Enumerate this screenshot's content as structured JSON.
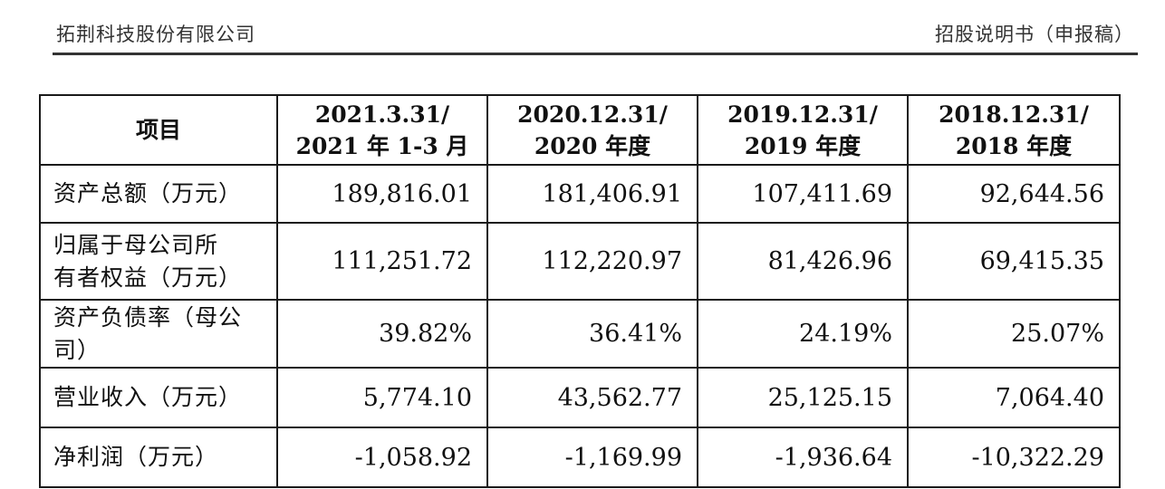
{
  "header": {
    "company": "拓荆科技股份有限公司",
    "doc_title": "招股说明书（申报稿）"
  },
  "table": {
    "columns": [
      {
        "line1": "项目",
        "line2": ""
      },
      {
        "line1": "2021.3.31/",
        "line2": "2021 年 1-3 月"
      },
      {
        "line1": "2020.12.31/",
        "line2": "2020 年度"
      },
      {
        "line1": "2019.12.31/",
        "line2": "2019 年度"
      },
      {
        "line1": "2018.12.31/",
        "line2": "2018 年度"
      }
    ],
    "rows": [
      {
        "label_line1": "资产总额（万元）",
        "label_line2": "",
        "values": [
          "189,816.01",
          "181,406.91",
          "107,411.69",
          "92,644.56"
        ]
      },
      {
        "label_line1": "归属于母公司所",
        "label_line2": "有者权益（万元）",
        "values": [
          "111,251.72",
          "112,220.97",
          "81,426.96",
          "69,415.35"
        ]
      },
      {
        "label_line1": "资产负债率（母公",
        "label_line2": "司）",
        "values": [
          "39.82%",
          "36.41%",
          "24.19%",
          "25.07%"
        ]
      },
      {
        "label_line1": "营业收入（万元）",
        "label_line2": "",
        "values": [
          "5,774.10",
          "43,562.77",
          "25,125.15",
          "7,064.40"
        ]
      },
      {
        "label_line1": "净利润（万元）",
        "label_line2": "",
        "values": [
          "-1,058.92",
          "-1,169.99",
          "-1,936.64",
          "-10,322.29"
        ]
      }
    ]
  }
}
